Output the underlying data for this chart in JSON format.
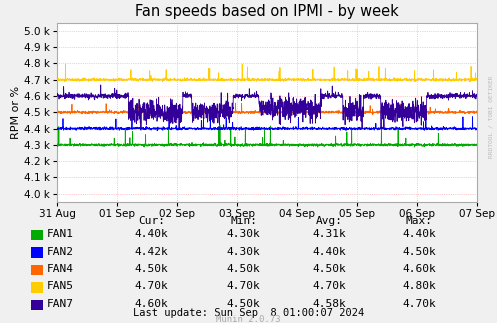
{
  "title": "Fan speeds based on IPMI - by week",
  "ylabel": "RPM or %",
  "background_color": "#F0F0F0",
  "plot_bg_color": "#FFFFFF",
  "grid_color": "#FF9999",
  "border_color": "#AAAAAA",
  "xticklabels": [
    "31 Aug",
    "01 Sep",
    "02 Sep",
    "03 Sep",
    "04 Sep",
    "05 Sep",
    "06 Sep",
    "07 Sep"
  ],
  "yticks": [
    4000,
    4100,
    4200,
    4300,
    4400,
    4500,
    4600,
    4700,
    4800,
    4900,
    5000
  ],
  "ylim": [
    3950,
    5050
  ],
  "fans": {
    "FAN1": {
      "color": "#00AA00",
      "base": 4300,
      "cur": "4.40k",
      "min": "4.30k",
      "avg": "4.31k",
      "max": "4.40k"
    },
    "FAN2": {
      "color": "#0000FF",
      "base": 4400,
      "cur": "4.42k",
      "min": "4.30k",
      "avg": "4.40k",
      "max": "4.50k"
    },
    "FAN4": {
      "color": "#FF6600",
      "base": 4500,
      "cur": "4.50k",
      "min": "4.50k",
      "avg": "4.50k",
      "max": "4.60k"
    },
    "FAN5": {
      "color": "#FFCC00",
      "base": 4700,
      "cur": "4.70k",
      "min": "4.70k",
      "avg": "4.70k",
      "max": "4.80k"
    },
    "FAN7": {
      "color": "#330099",
      "base": 4600,
      "cur": "4.60k",
      "min": "4.50k",
      "avg": "4.58k",
      "max": "4.70k"
    }
  },
  "fan_order": [
    "FAN1",
    "FAN2",
    "FAN4",
    "FAN5",
    "FAN7"
  ],
  "legend_cols": [
    "Cur:",
    "Min:",
    "Avg:",
    "Max:"
  ],
  "watermark": "Munin 2.0.73",
  "right_label": "RRDTOOL / TOBI OETIKER",
  "last_update": "Last update: Sun Sep  8 01:00:07 2024"
}
